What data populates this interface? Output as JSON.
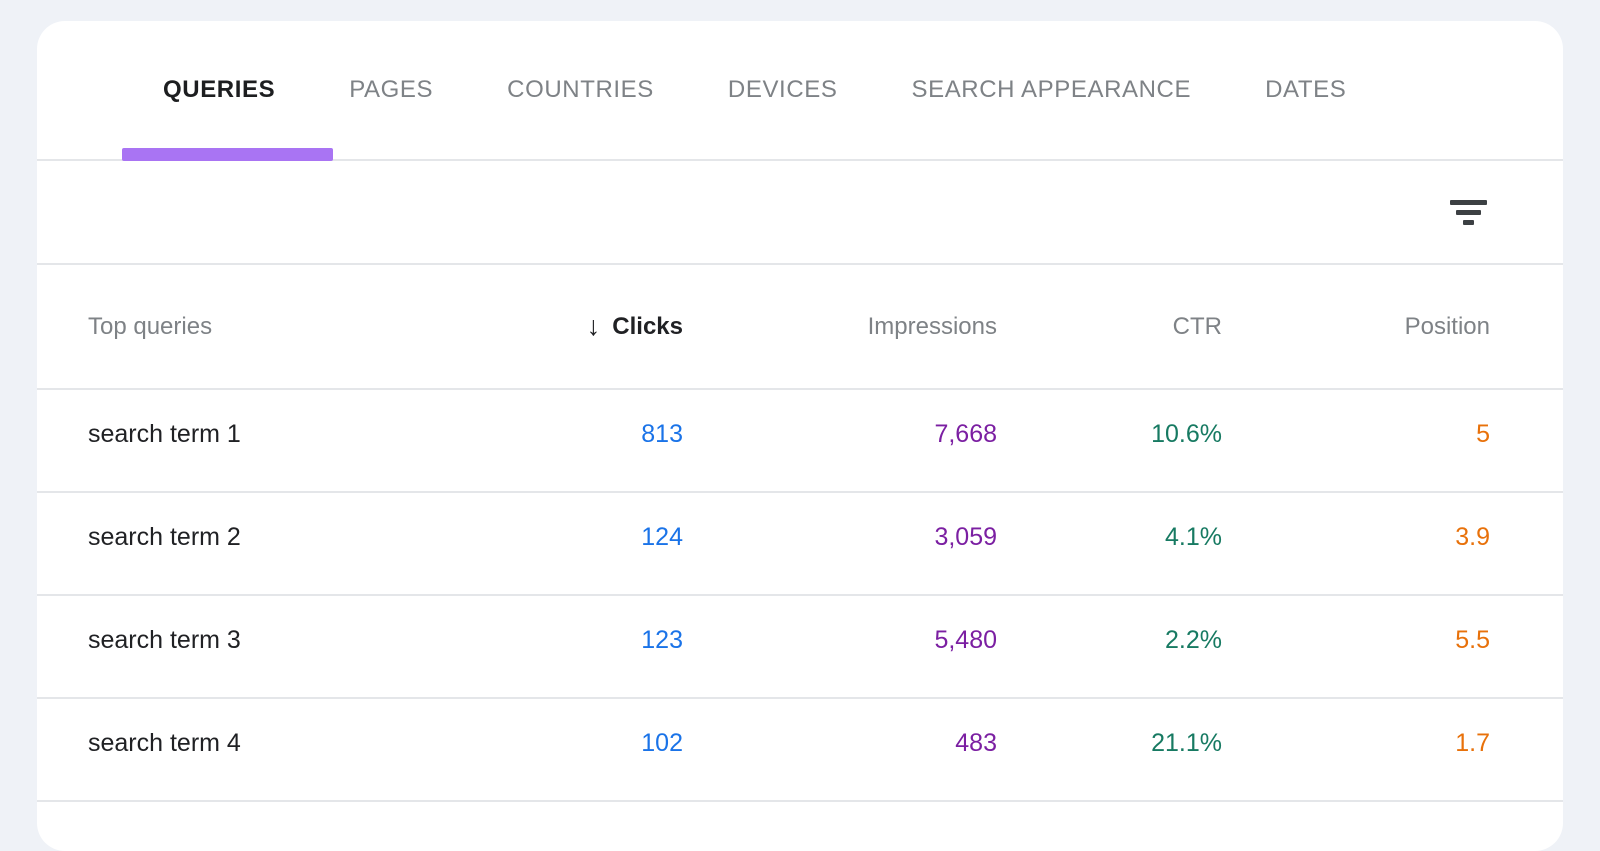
{
  "tabs": [
    {
      "label": "QUERIES",
      "active": true
    },
    {
      "label": "PAGES",
      "active": false
    },
    {
      "label": "COUNTRIES",
      "active": false
    },
    {
      "label": "DEVICES",
      "active": false
    },
    {
      "label": "SEARCH APPEARANCE",
      "active": false
    },
    {
      "label": "DATES",
      "active": false
    }
  ],
  "toolbar": {
    "filter_icon": "filter-icon"
  },
  "table": {
    "columns": {
      "queries": "Top queries",
      "clicks": "Clicks",
      "impressions": "Impressions",
      "ctr": "CTR",
      "position": "Position"
    },
    "sort": {
      "column": "Clicks",
      "direction": "desc",
      "arrow": "↓"
    },
    "rows": [
      {
        "query": "search term 1",
        "clicks": "813",
        "impressions": "7,668",
        "ctr": "10.6%",
        "position": "5"
      },
      {
        "query": "search term 2",
        "clicks": "124",
        "impressions": "3,059",
        "ctr": "4.1%",
        "position": "3.9"
      },
      {
        "query": "search term 3",
        "clicks": "123",
        "impressions": "5,480",
        "ctr": "2.2%",
        "position": "5.5"
      },
      {
        "query": "search term 4",
        "clicks": "102",
        "impressions": "483",
        "ctr": "21.1%",
        "position": "1.7"
      }
    ]
  },
  "colors": {
    "background": "#eff2f7",
    "accent": "#a974f3",
    "clicks": "#1a73e8",
    "impressions": "#7b1fa2",
    "ctr": "#177a62",
    "position": "#e8710a",
    "divider": "#e4e6e9",
    "tab_inactive": "#7e8286",
    "text": "#202124",
    "header_gray": "#7e8286",
    "icon": "#3c4043"
  }
}
